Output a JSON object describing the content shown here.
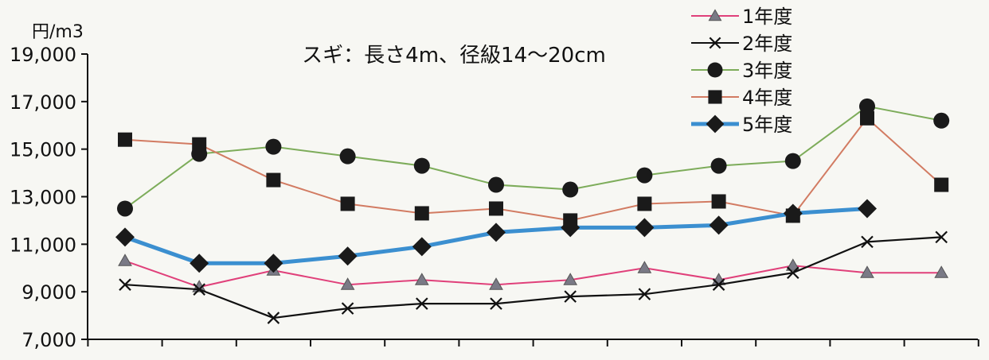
{
  "chart_data": {
    "type": "line",
    "title": "スギ：長さ4m、径級14～20cm",
    "ylabel": "円/m3",
    "xlabel": "",
    "ylim": [
      7000,
      19000
    ],
    "yticks": [
      "19,000",
      "17,000",
      "15,000",
      "13,000",
      "11,000",
      "9,000",
      "7,000"
    ],
    "grid": false,
    "legend_position": "top-right",
    "x": [
      1,
      2,
      3,
      4,
      5,
      6,
      7,
      8,
      9,
      10,
      11,
      12
    ],
    "series": [
      {
        "name": "1年度",
        "color": "#e0407a",
        "marker": "triangle",
        "values": [
          10300,
          9200,
          9900,
          9300,
          9500,
          9300,
          9500,
          10000,
          9500,
          10100,
          9800,
          9800
        ]
      },
      {
        "name": "2年度",
        "color": "#111111",
        "marker": "x",
        "values": [
          9300,
          9100,
          7900,
          8300,
          8500,
          8500,
          8800,
          8900,
          9300,
          9800,
          11100,
          11300
        ]
      },
      {
        "name": "3年度",
        "color": "#7dac5a",
        "marker": "circle",
        "values": [
          12500,
          14800,
          15100,
          14700,
          14300,
          13500,
          13300,
          13900,
          14300,
          14500,
          16800,
          16200
        ]
      },
      {
        "name": "4年度",
        "color": "#d27b62",
        "marker": "square",
        "values": [
          15400,
          15200,
          13700,
          12700,
          12300,
          12500,
          12000,
          12700,
          12800,
          12200,
          16300,
          13500
        ]
      },
      {
        "name": "5年度",
        "color": "#3b8fd0",
        "marker": "diamond",
        "values": [
          11300,
          10200,
          10200,
          10500,
          10900,
          11500,
          11700,
          11700,
          11800,
          12300,
          12500,
          null
        ]
      }
    ]
  }
}
